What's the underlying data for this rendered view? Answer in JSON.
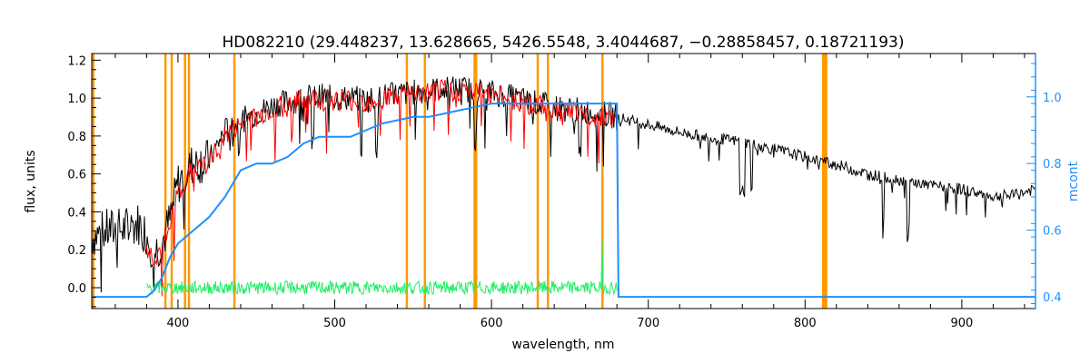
{
  "chart_data": {
    "type": "line",
    "title": "HD082210     (29.448237, 13.628665, 5426.5548, 3.4044687, −0.28858457, 0.18721193)",
    "xlabel": "wavelength, nm",
    "ylabel": "flux, units",
    "y2label": "mcont",
    "xlim": [
      345,
      947
    ],
    "ylim": [
      -0.11,
      1.235
    ],
    "y2lim": [
      0.365,
      1.13
    ],
    "xticks": [
      400,
      500,
      600,
      700,
      800,
      900
    ],
    "yticks": [
      0.0,
      0.2,
      0.4,
      0.6,
      0.8,
      1.0,
      1.2
    ],
    "y2ticks": [
      0.4,
      0.6,
      0.8,
      1.0
    ],
    "grid": false,
    "colors": {
      "observed": "#000000",
      "model": "#ff0000",
      "continuum": "#1e90ff",
      "residual": "#22ee66",
      "masks": "#ff9900",
      "right_axis": "#1e90ff"
    },
    "mask_lines": [
      346,
      392,
      396,
      404.5,
      407,
      436,
      546,
      557.5,
      589.2,
      590.2,
      629.5,
      636,
      670.8,
      811.5,
      812.5,
      813.5
    ],
    "series": [
      {
        "role": "observed",
        "x": [
          345,
          355,
          365,
          375,
          380,
          385,
          390,
          395,
          400,
          410,
          420,
          430,
          440,
          450,
          460,
          470,
          480,
          490,
          500,
          510,
          520,
          530,
          540,
          550,
          560,
          570,
          580,
          590,
          600,
          610,
          620,
          630,
          640,
          650,
          660,
          670,
          680,
          690,
          700,
          720,
          740,
          760,
          780,
          800,
          820,
          840,
          860,
          880,
          900,
          920,
          935,
          947
        ],
        "values": [
          0.27,
          0.3,
          0.31,
          0.34,
          0.28,
          0.19,
          0.24,
          0.36,
          0.55,
          0.66,
          0.67,
          0.83,
          0.88,
          0.92,
          0.96,
          0.98,
          1.0,
          1.01,
          1.0,
          1.0,
          0.99,
          1.01,
          1.02,
          1.03,
          1.04,
          1.05,
          1.05,
          1.04,
          1.03,
          1.01,
          0.99,
          0.97,
          0.95,
          0.94,
          0.93,
          0.92,
          0.9,
          0.88,
          0.86,
          0.82,
          0.79,
          0.77,
          0.73,
          0.69,
          0.65,
          0.6,
          0.57,
          0.54,
          0.52,
          0.48,
          0.49,
          0.52
        ]
      },
      {
        "role": "model",
        "x": [
          380,
          385,
          390,
          395,
          400,
          410,
          420,
          430,
          440,
          450,
          460,
          470,
          480,
          490,
          500,
          510,
          520,
          530,
          540,
          550,
          560,
          570,
          580,
          590,
          600,
          610,
          620,
          630,
          640,
          650,
          660,
          670,
          680
        ],
        "values": [
          0.2,
          0.16,
          0.22,
          0.33,
          0.5,
          0.63,
          0.66,
          0.8,
          0.86,
          0.9,
          0.94,
          0.96,
          0.99,
          1.0,
          0.99,
          0.99,
          0.98,
          1.0,
          1.01,
          1.02,
          1.03,
          1.04,
          1.04,
          1.03,
          1.02,
          1.0,
          0.98,
          0.96,
          0.94,
          0.93,
          0.92,
          0.91,
          0.89
        ]
      },
      {
        "role": "continuum",
        "axis": "right",
        "x": [
          345,
          380,
          385,
          390,
          395,
          400,
          410,
          420,
          430,
          440,
          450,
          460,
          470,
          480,
          490,
          500,
          510,
          520,
          530,
          540,
          550,
          560,
          570,
          580,
          590,
          600,
          610,
          620,
          630,
          640,
          650,
          660,
          670,
          680,
          681,
          947
        ],
        "values": [
          0.4,
          0.4,
          0.42,
          0.46,
          0.52,
          0.56,
          0.6,
          0.64,
          0.7,
          0.78,
          0.8,
          0.8,
          0.82,
          0.86,
          0.88,
          0.88,
          0.88,
          0.9,
          0.92,
          0.93,
          0.94,
          0.94,
          0.95,
          0.96,
          0.97,
          0.98,
          0.98,
          0.98,
          0.98,
          0.98,
          0.98,
          0.98,
          0.98,
          0.98,
          0.4,
          0.4
        ]
      },
      {
        "role": "residual",
        "x": [
          380,
          680
        ],
        "values": [
          0.0,
          0.0
        ]
      }
    ]
  }
}
